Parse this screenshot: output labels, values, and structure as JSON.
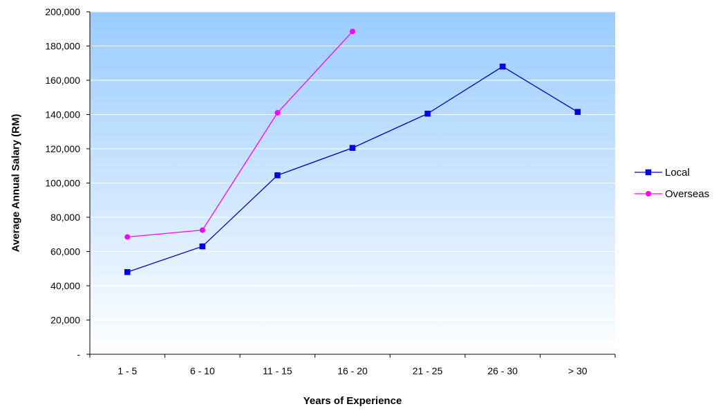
{
  "chart_data": {
    "type": "line",
    "title": "",
    "xlabel": "Years of Experience",
    "ylabel": "Average Annual Salary (RM)",
    "categories": [
      "1 - 5",
      "6 - 10",
      "11 - 15",
      "16 - 20",
      "21 - 25",
      "26 - 30",
      "> 30"
    ],
    "ylim": [
      0,
      200000
    ],
    "y_ticks": [
      0,
      20000,
      40000,
      60000,
      80000,
      100000,
      120000,
      140000,
      160000,
      180000,
      200000
    ],
    "y_tick_labels": [
      "-",
      "20,000",
      "40,000",
      "60,000",
      "80,000",
      "100,000",
      "120,000",
      "140,000",
      "160,000",
      "180,000",
      "200,000"
    ],
    "grid": true,
    "legend_position": "right",
    "background_gradient": [
      "#99ccff",
      "#ffffff"
    ],
    "series": [
      {
        "name": "Local",
        "color": "#0000cc",
        "marker_color": "#0000ee",
        "marker": "square",
        "values": [
          48000,
          63000,
          104500,
          120500,
          140500,
          168000,
          141500
        ]
      },
      {
        "name": "Overseas",
        "color": "#ff00ff",
        "marker_color": "#ff00ff",
        "marker": "circle",
        "values": [
          68500,
          72500,
          141000,
          188500,
          null,
          null,
          null
        ]
      }
    ]
  }
}
